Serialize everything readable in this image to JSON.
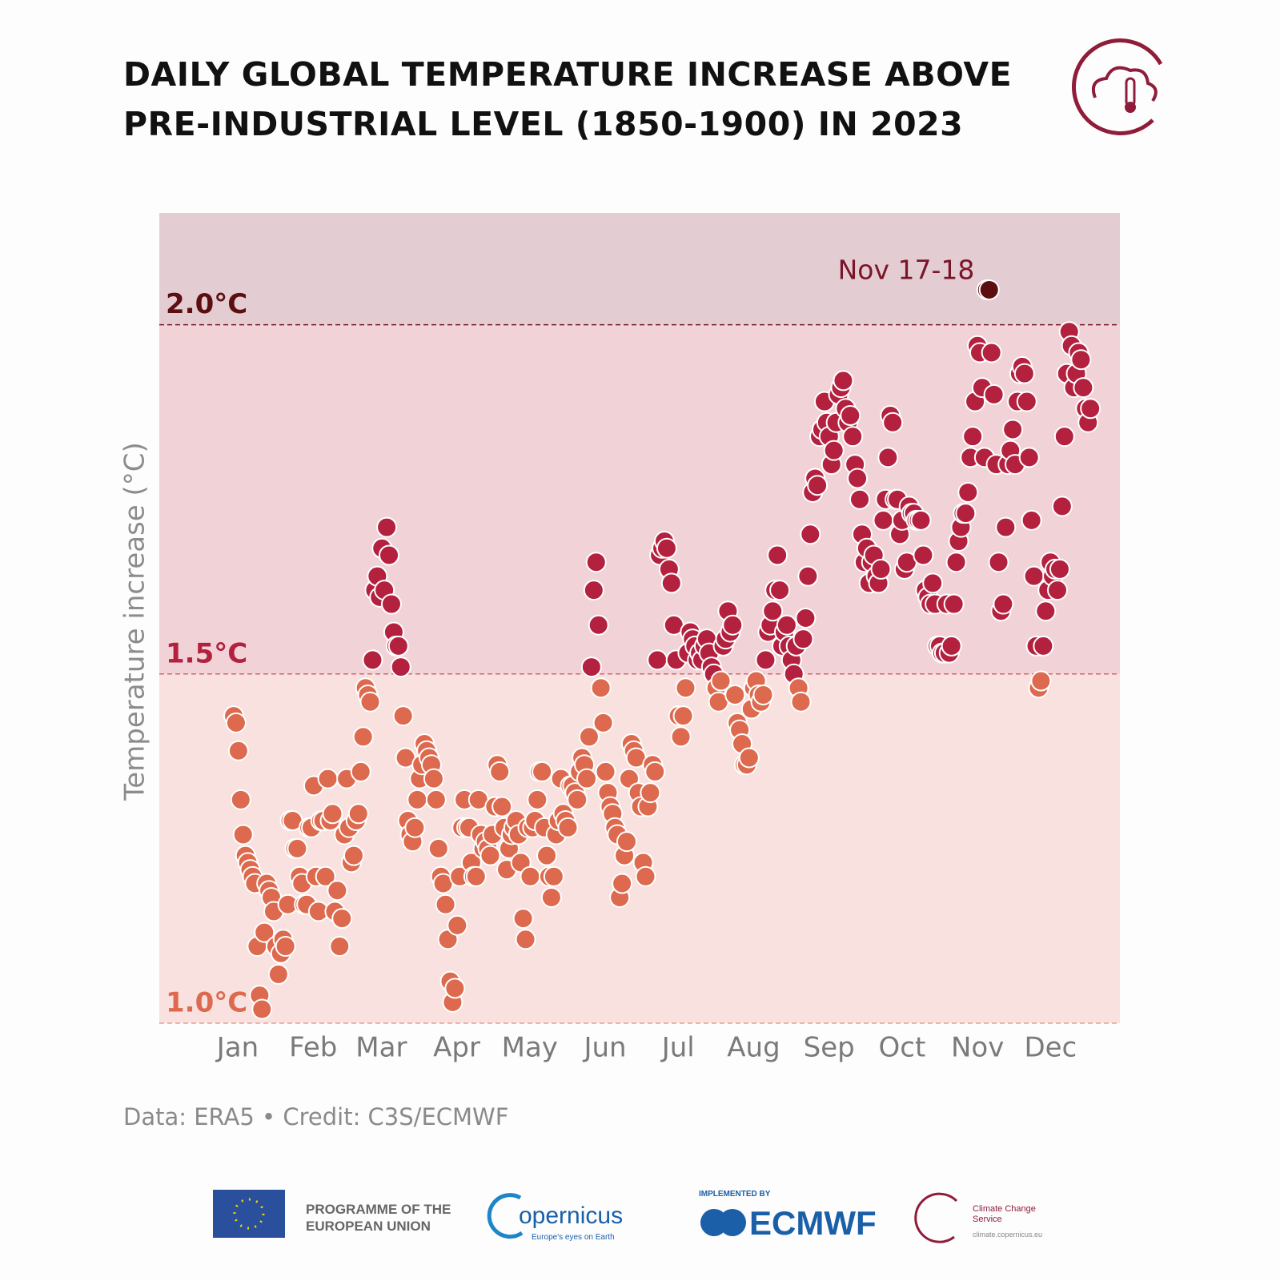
{
  "chart_data": {
    "type": "scatter",
    "title": "DAILY GLOBAL TEMPERATURE INCREASE ABOVE PRE-INDUSTRIAL LEVEL (1850-1900) IN 2023",
    "ylabel": "Temperature increase (°C)",
    "source": "Data: ERA5 • Credit: C3S/ECMWF",
    "annotation": "Nov 17-18",
    "ylim": [
      1.0,
      2.16
    ],
    "yticks": [
      {
        "value": 1.0,
        "label": "1.0°C"
      },
      {
        "value": 1.5,
        "label": "1.5°C"
      },
      {
        "value": 2.0,
        "label": "2.0°C"
      }
    ],
    "zone_colors": [
      "#dd6a4e",
      "#b3213f",
      "#5c0e10"
    ],
    "band_colors": [
      "#f8e1df",
      "#f1d3d7",
      "#e4cdd2"
    ],
    "line_colors": [
      "#e9a090",
      "#d46666",
      "#7a1528"
    ],
    "categories": [
      "Jan",
      null,
      null,
      null,
      null,
      null,
      null,
      null,
      null,
      null,
      null,
      null,
      null,
      null,
      null,
      null,
      null,
      null,
      null,
      null,
      null,
      null,
      null,
      null,
      null,
      null,
      null,
      null,
      null,
      null,
      null,
      "Feb",
      null,
      null,
      null,
      null,
      null,
      null,
      null,
      null,
      null,
      null,
      null,
      null,
      null,
      null,
      null,
      null,
      null,
      null,
      null,
      null,
      null,
      null,
      null,
      null,
      null,
      null,
      null,
      "Mar",
      null,
      null,
      null,
      null,
      null,
      null,
      null,
      null,
      null,
      null,
      null,
      null,
      null,
      null,
      null,
      null,
      null,
      null,
      null,
      null,
      null,
      null,
      null,
      null,
      null,
      null,
      null,
      null,
      null,
      null,
      "Apr",
      null,
      null,
      null,
      null,
      null,
      null,
      null,
      null,
      null,
      null,
      null,
      null,
      null,
      null,
      null,
      null,
      null,
      null,
      null,
      null,
      null,
      null,
      null,
      null,
      null,
      null,
      null,
      null,
      null,
      "May",
      null,
      null,
      null,
      null,
      null,
      null,
      null,
      null,
      null,
      null,
      null,
      null,
      null,
      null,
      null,
      null,
      null,
      null,
      null,
      null,
      null,
      null,
      null,
      null,
      null,
      null,
      null,
      null,
      null,
      null,
      "Jun",
      null,
      null,
      null,
      null,
      null,
      null,
      null,
      null,
      null,
      null,
      null,
      null,
      null,
      null,
      null,
      null,
      null,
      null,
      null,
      null,
      null,
      null,
      null,
      null,
      null,
      null,
      null,
      null,
      null,
      "Jul",
      null,
      null,
      null,
      null,
      null,
      null,
      null,
      null,
      null,
      null,
      null,
      null,
      null,
      null,
      null,
      null,
      null,
      null,
      null,
      null,
      null,
      null,
      null,
      null,
      null,
      null,
      null,
      null,
      null,
      null,
      "Aug",
      null,
      null,
      null,
      null,
      null,
      null,
      null,
      null,
      null,
      null,
      null,
      null,
      null,
      null,
      null,
      null,
      null,
      null,
      null,
      null,
      null,
      null,
      null,
      null,
      null,
      null,
      null,
      null,
      null,
      null,
      "Sep",
      null,
      null,
      null,
      null,
      null,
      null,
      null,
      null,
      null,
      null,
      null,
      null,
      null,
      null,
      null,
      null,
      null,
      null,
      null,
      null,
      null,
      null,
      null,
      null,
      null,
      null,
      null,
      null,
      null,
      "Oct",
      null,
      null,
      null,
      null,
      null,
      null,
      null,
      null,
      null,
      null,
      null,
      null,
      null,
      null,
      null,
      null,
      null,
      null,
      null,
      null,
      null,
      null,
      null,
      null,
      null,
      null,
      null,
      null,
      null,
      null,
      "Nov",
      null,
      null,
      null,
      null,
      null,
      null,
      null,
      null,
      null,
      null,
      null,
      null,
      null,
      null,
      null,
      null,
      null,
      null,
      null,
      null,
      null,
      null,
      null,
      null,
      null,
      null,
      null,
      null,
      null,
      "Dec",
      null,
      null,
      null,
      null,
      null,
      null,
      null,
      null,
      null,
      null,
      null,
      null,
      null,
      null,
      null,
      null,
      null,
      null,
      null,
      null,
      null,
      null,
      null,
      null,
      null,
      null,
      null,
      null,
      null,
      null
    ],
    "values": [
      1.44,
      1.43,
      1.39,
      1.32,
      1.27,
      1.24,
      1.23,
      1.22,
      1.21,
      1.2,
      1.11,
      1.04,
      1.02,
      1.13,
      1.2,
      1.19,
      1.18,
      1.16,
      1.11,
      1.07,
      1.1,
      1.12,
      1.11,
      1.17,
      1.29,
      1.29,
      1.25,
      1.25,
      1.21,
      1.2,
      1.17,
      1.17,
      1.28,
      1.28,
      1.34,
      1.21,
      1.16,
      1.29,
      1.29,
      1.21,
      1.35,
      1.29,
      1.3,
      1.16,
      1.19,
      1.11,
      1.15,
      1.27,
      1.35,
      1.28,
      1.23,
      1.24,
      1.29,
      1.3,
      1.36,
      1.41,
      1.48,
      1.47,
      1.46,
      1.52,
      1.62,
      1.64,
      1.61,
      1.68,
      1.62,
      1.71,
      1.67,
      1.6,
      1.56,
      1.54,
      1.54,
      1.51,
      1.44,
      1.38,
      1.29,
      1.27,
      1.26,
      1.28,
      1.32,
      1.35,
      1.37,
      1.4,
      1.39,
      1.38,
      1.37,
      1.35,
      1.32,
      1.25,
      1.21,
      1.2,
      1.17,
      1.12,
      1.06,
      1.03,
      1.05,
      1.14,
      1.21,
      1.28,
      1.32,
      1.28,
      1.28,
      1.23,
      1.21,
      1.21,
      1.32,
      1.27,
      1.25,
      1.26,
      1.25,
      1.24,
      1.27,
      1.31,
      1.37,
      1.36,
      1.31,
      1.28,
      1.22,
      1.25,
      1.27,
      1.28,
      1.29,
      1.27,
      1.23,
      1.15,
      1.12,
      1.28,
      1.21,
      1.28,
      1.29,
      1.32,
      1.36,
      1.36,
      1.28,
      1.24,
      1.21,
      1.18,
      1.21,
      1.27,
      1.29,
      1.35,
      1.3,
      1.29,
      1.28,
      1.34,
      1.34,
      1.33,
      1.32,
      1.36,
      1.38,
      1.37,
      1.35,
      1.41,
      1.51,
      1.62,
      1.66,
      1.57,
      1.48,
      1.43,
      1.36,
      1.33,
      1.31,
      1.3,
      1.28,
      1.27,
      1.18,
      1.2,
      1.24,
      1.26,
      1.35,
      1.4,
      1.39,
      1.38,
      1.33,
      1.31,
      1.23,
      1.21,
      1.31,
      1.33,
      1.37,
      1.36,
      1.52,
      1.67,
      1.68,
      1.69,
      1.68,
      1.65,
      1.63,
      1.57,
      1.52,
      1.44,
      1.41,
      1.44,
      1.48,
      1.53,
      1.56,
      1.55,
      1.54,
      1.52,
      1.53,
      1.52,
      1.54,
      1.55,
      1.53,
      1.51,
      1.5,
      1.48,
      1.46,
      1.49,
      1.54,
      1.55,
      1.59,
      1.56,
      1.57,
      1.47,
      1.43,
      1.42,
      1.4,
      1.37,
      1.37,
      1.38,
      1.45,
      1.48,
      1.49,
      1.47,
      1.46,
      1.47,
      1.52,
      1.56,
      1.57,
      1.59,
      1.62,
      1.67,
      1.62,
      1.54,
      1.56,
      1.57,
      1.54,
      1.52,
      1.5,
      1.54,
      1.48,
      1.46,
      1.55,
      1.58,
      1.64,
      1.7,
      1.76,
      1.78,
      1.77,
      1.84,
      1.85,
      1.89,
      1.86,
      1.84,
      1.8,
      1.82,
      1.86,
      1.9,
      1.91,
      1.92,
      1.88,
      1.86,
      1.87,
      1.84,
      1.8,
      1.78,
      1.75,
      1.7,
      1.66,
      1.68,
      1.63,
      1.66,
      1.67,
      1.64,
      1.63,
      1.65,
      1.72,
      1.75,
      1.81,
      1.87,
      1.86,
      1.75,
      1.75,
      1.7,
      1.72,
      1.65,
      1.66,
      1.74,
      1.73,
      1.73,
      1.72,
      1.72,
      1.72,
      1.67,
      1.62,
      1.61,
      1.6,
      1.63,
      1.6,
      1.54,
      1.54,
      1.53,
      1.53,
      1.6,
      1.53,
      1.54,
      1.6,
      1.66,
      1.69,
      1.71,
      1.73,
      1.73,
      1.76,
      1.81,
      1.84,
      1.89,
      1.97,
      1.96,
      1.91,
      1.81,
      2.05,
      2.05,
      1.96,
      1.9,
      1.8,
      1.66,
      1.59,
      1.6,
      1.71,
      1.8,
      1.82,
      1.85,
      1.8,
      1.89,
      1.93,
      1.94,
      1.93,
      1.89,
      1.81,
      1.72,
      1.64,
      1.54,
      1.48,
      1.49,
      1.54,
      1.59,
      1.62,
      1.66,
      1.64,
      1.65,
      1.62,
      1.65,
      1.74,
      1.84,
      1.93,
      1.99,
      1.97,
      1.91,
      1.93,
      1.96,
      1.95,
      1.91,
      1.88,
      1.86,
      1.88
    ]
  },
  "footer": {
    "eu": "PROGRAMME OF THE EUROPEAN UNION",
    "copernicus": "opernicus",
    "copernicus_tagline": "Europe's eyes on Earth",
    "implemented_by": "IMPLEMENTED BY",
    "ecmwf": "ECMWF",
    "c3s": "Climate Change Service",
    "c3s_url": "climate.copernicus.eu"
  }
}
